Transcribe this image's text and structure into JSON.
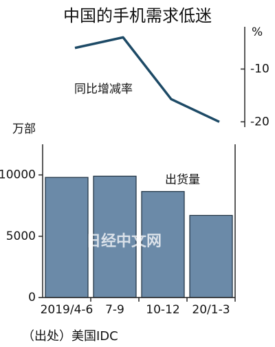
{
  "title": "中国的手机需求低迷",
  "source": "（出处）美国IDC",
  "watermark": "日经中文网",
  "chart_data": [
    {
      "type": "line",
      "label": "同比增减率",
      "unit": "%",
      "values": [
        -6,
        -4,
        -15.7,
        -20
      ],
      "ylim": [
        -21,
        -2
      ],
      "yticks": [
        -10,
        -20
      ],
      "color": "#1d4a66"
    },
    {
      "type": "bar",
      "label": "出货量",
      "unit": "万部",
      "categories": [
        "2019/4-6",
        "7-9",
        "10-12",
        "20/1-3"
      ],
      "values": [
        9800,
        9900,
        8650,
        6700
      ],
      "ylim": [
        0,
        12500
      ],
      "yticks": [
        0,
        5000,
        10000
      ],
      "color": "#6b8aa8"
    }
  ]
}
